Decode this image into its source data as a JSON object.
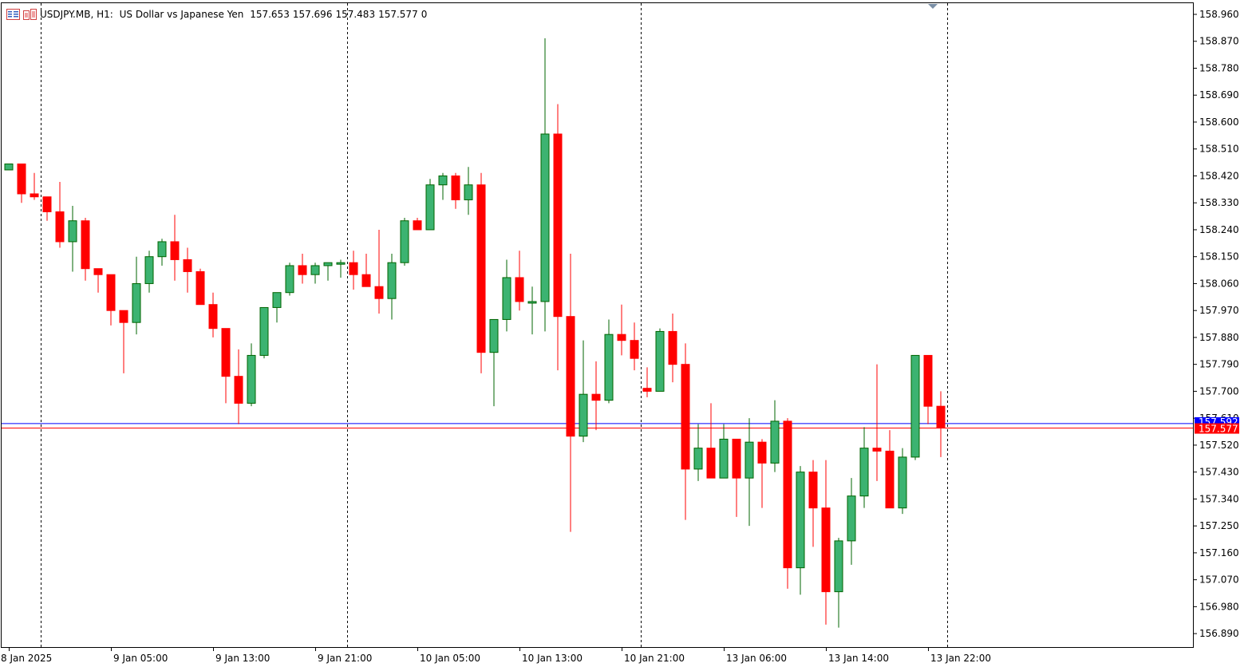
{
  "header": {
    "symbol": "USDJPY.MB, H1:",
    "description": "US Dollar vs Japanese Yen",
    "open": "157.653",
    "high": "157.696",
    "low": "157.483",
    "close": "157.577",
    "volume": "0",
    "icons": [
      "chart-list-icon",
      "one-click-trading-icon"
    ]
  },
  "colors": {
    "bull": "#3cb371",
    "bear": "#ff0000",
    "wick_bull": "#006400",
    "wick_bear": "#ff0000",
    "bid_line": "#ff0000",
    "ask_line": "#0000ff",
    "grid": "#000000",
    "axis_text": "#000000",
    "background": "#ffffff"
  },
  "price_labels": {
    "bid": "157.577",
    "ask": "157.592",
    "ask_hidden_text": "157.610"
  },
  "chart_data": {
    "type": "candlestick",
    "timeframe": "H1",
    "symbol": "USDJPY.MB",
    "ylim": [
      156.845,
      159.0
    ],
    "y_ticks": [
      "158.960",
      "158.870",
      "158.780",
      "158.690",
      "158.600",
      "158.510",
      "158.420",
      "158.330",
      "158.240",
      "158.150",
      "158.060",
      "157.970",
      "157.880",
      "157.790",
      "157.700",
      "157.610",
      "157.520",
      "157.430",
      "157.340",
      "157.250",
      "157.160",
      "157.070",
      "156.980",
      "156.890"
    ],
    "x_labels": [
      "8 Jan 2025",
      "9 Jan 05:00",
      "9 Jan 13:00",
      "9 Jan 21:00",
      "10 Jan 05:00",
      "10 Jan 13:00",
      "10 Jan 21:00",
      "13 Jan 06:00",
      "13 Jan 14:00",
      "13 Jan 22:00"
    ],
    "x_label_bar_index": [
      0,
      8,
      16,
      24,
      32,
      40,
      48,
      56,
      64,
      72
    ],
    "day_separator_bar_index": [
      3,
      27,
      50,
      74
    ],
    "bid": 157.577,
    "ask": 157.592,
    "ohlc": [
      [
        158.44,
        158.46,
        158.44,
        158.46
      ],
      [
        158.46,
        158.46,
        158.33,
        158.36
      ],
      [
        158.36,
        158.43,
        158.34,
        158.35
      ],
      [
        158.35,
        158.35,
        158.27,
        158.3
      ],
      [
        158.3,
        158.4,
        158.18,
        158.2
      ],
      [
        158.2,
        158.32,
        158.1,
        158.27
      ],
      [
        158.27,
        158.28,
        158.07,
        158.11
      ],
      [
        158.11,
        158.11,
        158.03,
        158.09
      ],
      [
        158.09,
        158.09,
        157.92,
        157.97
      ],
      [
        157.97,
        157.97,
        157.76,
        157.93
      ],
      [
        157.93,
        158.15,
        157.89,
        158.06
      ],
      [
        158.06,
        158.17,
        158.03,
        158.15
      ],
      [
        158.15,
        158.21,
        158.12,
        158.2
      ],
      [
        158.2,
        158.29,
        158.07,
        158.14
      ],
      [
        158.14,
        158.18,
        158.03,
        158.1
      ],
      [
        158.1,
        158.11,
        158.0,
        157.99
      ],
      [
        157.99,
        158.03,
        157.88,
        157.91
      ],
      [
        157.91,
        157.91,
        157.66,
        157.75
      ],
      [
        157.75,
        157.84,
        157.59,
        157.66
      ],
      [
        157.66,
        157.86,
        157.65,
        157.82
      ],
      [
        157.82,
        157.98,
        157.81,
        157.98
      ],
      [
        157.98,
        158.03,
        157.93,
        158.03
      ],
      [
        158.03,
        158.13,
        158.02,
        158.12
      ],
      [
        158.12,
        158.16,
        158.06,
        158.09
      ],
      [
        158.09,
        158.13,
        158.06,
        158.12
      ],
      [
        158.12,
        158.13,
        158.07,
        158.13
      ],
      [
        158.13,
        158.14,
        158.08,
        158.13
      ],
      [
        158.13,
        158.17,
        158.04,
        158.09
      ],
      [
        158.09,
        158.16,
        158.05,
        158.05
      ],
      [
        158.05,
        158.24,
        157.96,
        158.01
      ],
      [
        158.01,
        158.16,
        157.94,
        158.13
      ],
      [
        158.13,
        158.28,
        158.12,
        158.27
      ],
      [
        158.27,
        158.28,
        158.24,
        158.24
      ],
      [
        158.24,
        158.41,
        158.24,
        158.39
      ],
      [
        158.39,
        158.43,
        158.34,
        158.42
      ],
      [
        158.42,
        158.43,
        158.31,
        158.34
      ],
      [
        158.34,
        158.45,
        158.29,
        158.39
      ],
      [
        158.39,
        158.43,
        157.76,
        157.83
      ],
      [
        157.83,
        157.94,
        157.65,
        157.94
      ],
      [
        157.94,
        158.14,
        157.9,
        158.08
      ],
      [
        158.08,
        158.17,
        157.97,
        158.0
      ],
      [
        158.0,
        158.05,
        157.89,
        158.0
      ],
      [
        158.0,
        158.88,
        157.9,
        158.56
      ],
      [
        158.56,
        158.66,
        157.77,
        157.95
      ],
      [
        157.95,
        158.16,
        157.23,
        157.55
      ],
      [
        157.55,
        157.87,
        157.53,
        157.69
      ],
      [
        157.69,
        157.8,
        157.57,
        157.67
      ],
      [
        157.67,
        157.94,
        157.66,
        157.89
      ],
      [
        157.89,
        157.99,
        157.82,
        157.87
      ],
      [
        157.87,
        157.93,
        157.77,
        157.81
      ],
      [
        157.71,
        157.78,
        157.68,
        157.7
      ],
      [
        157.7,
        157.91,
        157.7,
        157.9
      ],
      [
        157.9,
        157.96,
        157.73,
        157.79
      ],
      [
        157.79,
        157.86,
        157.27,
        157.44
      ],
      [
        157.44,
        157.59,
        157.4,
        157.51
      ],
      [
        157.51,
        157.66,
        157.41,
        157.41
      ],
      [
        157.41,
        157.59,
        157.41,
        157.54
      ],
      [
        157.54,
        157.53,
        157.28,
        157.41
      ],
      [
        157.41,
        157.61,
        157.25,
        157.53
      ],
      [
        157.53,
        157.54,
        157.31,
        157.46
      ],
      [
        157.46,
        157.67,
        157.43,
        157.6
      ],
      [
        157.6,
        157.61,
        157.04,
        157.11
      ],
      [
        157.11,
        157.45,
        157.02,
        157.43
      ],
      [
        157.43,
        157.47,
        157.18,
        157.31
      ],
      [
        157.31,
        157.47,
        156.92,
        157.03
      ],
      [
        157.03,
        157.21,
        156.91,
        157.2
      ],
      [
        157.2,
        157.41,
        157.12,
        157.35
      ],
      [
        157.35,
        157.58,
        157.31,
        157.51
      ],
      [
        157.51,
        157.79,
        157.4,
        157.5
      ],
      [
        157.5,
        157.57,
        157.31,
        157.31
      ],
      [
        157.31,
        157.51,
        157.29,
        157.48
      ],
      [
        157.48,
        157.82,
        157.47,
        157.82
      ],
      [
        157.82,
        157.81,
        157.59,
        157.65
      ],
      [
        157.65,
        157.7,
        157.48,
        157.577
      ]
    ]
  }
}
